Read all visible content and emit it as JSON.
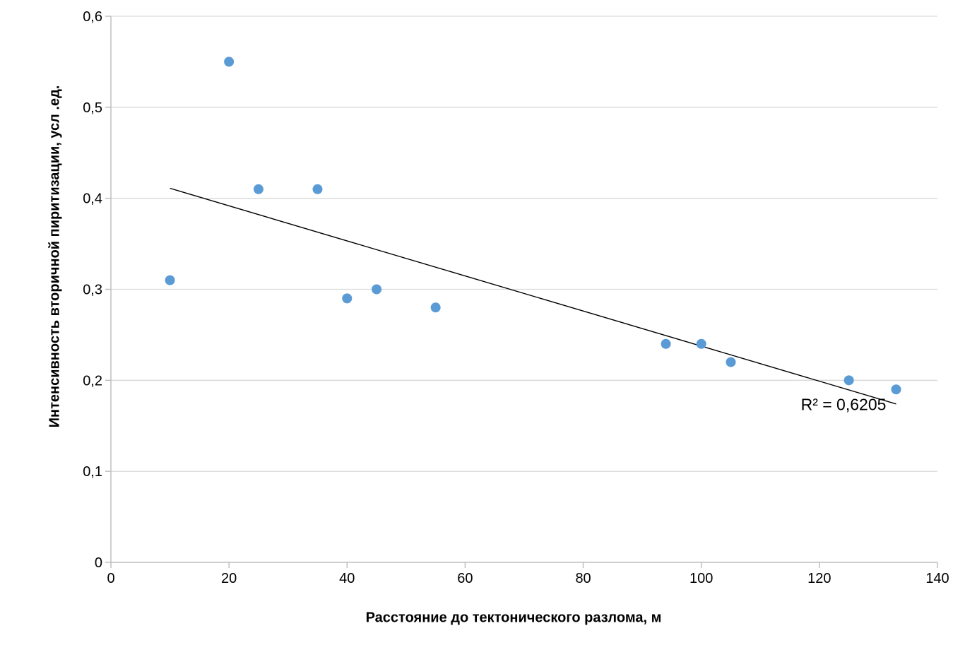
{
  "chart_data": {
    "type": "scatter",
    "title": "",
    "xlabel": "Расстояние до тектонического разлома, м",
    "ylabel": "Интенсивность вторичной пиритизации, усл .ед.",
    "xlim": [
      0,
      140
    ],
    "ylim": [
      0,
      0.6
    ],
    "x_ticks": [
      0,
      20,
      40,
      60,
      80,
      100,
      120,
      140
    ],
    "x_tick_labels": [
      "0",
      "20",
      "40",
      "60",
      "80",
      "100",
      "120",
      "140"
    ],
    "y_ticks": [
      0,
      0.1,
      0.2,
      0.3,
      0.4,
      0.5,
      0.6
    ],
    "y_tick_labels": [
      "0",
      "0,1",
      "0,2",
      "0,3",
      "0,4",
      "0,5",
      "0,6"
    ],
    "grid": "horizontal",
    "legend": "none",
    "points": [
      {
        "x": 10,
        "y": 0.31
      },
      {
        "x": 20,
        "y": 0.55
      },
      {
        "x": 25,
        "y": 0.41
      },
      {
        "x": 35,
        "y": 0.41
      },
      {
        "x": 40,
        "y": 0.29
      },
      {
        "x": 45,
        "y": 0.3
      },
      {
        "x": 55,
        "y": 0.28
      },
      {
        "x": 94,
        "y": 0.24
      },
      {
        "x": 100,
        "y": 0.24
      },
      {
        "x": 105,
        "y": 0.22
      },
      {
        "x": 125,
        "y": 0.2
      },
      {
        "x": 133,
        "y": 0.19
      }
    ],
    "trendline": {
      "type": "linear",
      "x1": 10,
      "y1": 0.411,
      "x2": 133,
      "y2": 0.174,
      "r_squared": 0.6205,
      "r_squared_label": "R² = 0,6205"
    },
    "colors": {
      "marker": "#5B9BD5",
      "trendline": "#000000",
      "gridline": "#D9D9D9",
      "axis": "#BFBFBF",
      "text": "#000000"
    }
  }
}
